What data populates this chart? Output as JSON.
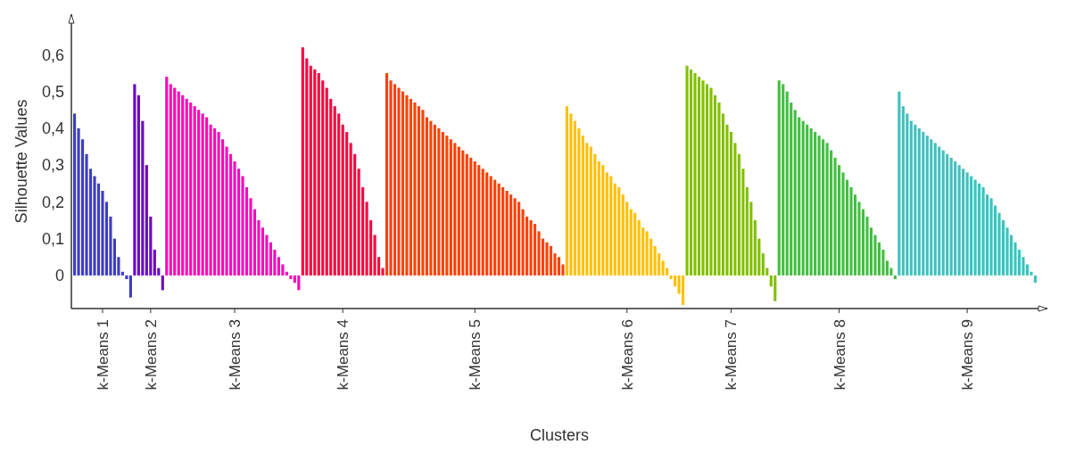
{
  "chart_data": {
    "type": "bar",
    "xlabel": "Clusters",
    "ylabel": "Silhouette Values",
    "categories": [
      null,
      null,
      null,
      null,
      null,
      null,
      null,
      "k-Means 1",
      null,
      null,
      null,
      null,
      null,
      null,
      null,
      null,
      null,
      null,
      null,
      "k-Means 2",
      null,
      null,
      null,
      null,
      null,
      null,
      null,
      null,
      null,
      null,
      null,
      null,
      null,
      null,
      null,
      null,
      null,
      null,
      null,
      null,
      "k-Means 3",
      null,
      null,
      null,
      null,
      null,
      null,
      null,
      null,
      null,
      null,
      null,
      null,
      null,
      null,
      null,
      null,
      null,
      null,
      null,
      null,
      null,
      null,
      null,
      null,
      null,
      null,
      "k-Means 4",
      null,
      null,
      null,
      null,
      null,
      null,
      null,
      null,
      null,
      null,
      null,
      null,
      null,
      null,
      null,
      null,
      null,
      null,
      null,
      null,
      null,
      null,
      null,
      null,
      null,
      null,
      null,
      null,
      null,
      null,
      null,
      null,
      "k-Means 5",
      null,
      null,
      null,
      null,
      null,
      null,
      null,
      null,
      null,
      null,
      null,
      null,
      null,
      null,
      null,
      null,
      null,
      null,
      null,
      null,
      null,
      null,
      null,
      null,
      null,
      null,
      null,
      null,
      null,
      null,
      null,
      null,
      null,
      null,
      null,
      null,
      null,
      "k-Means 6",
      null,
      null,
      null,
      null,
      null,
      null,
      null,
      null,
      null,
      null,
      null,
      null,
      null,
      null,
      null,
      null,
      null,
      null,
      null,
      null,
      null,
      null,
      null,
      null,
      null,
      "k-Means 7",
      null,
      null,
      null,
      null,
      null,
      null,
      null,
      null,
      null,
      null,
      null,
      null,
      null,
      null,
      null,
      null,
      null,
      null,
      null,
      null,
      null,
      null,
      null,
      null,
      null,
      null,
      "k-Means 8",
      null,
      null,
      null,
      null,
      null,
      null,
      null,
      null,
      null,
      null,
      null,
      null,
      null,
      null,
      null,
      null,
      null,
      null,
      null,
      null,
      null,
      null,
      null,
      null,
      null,
      null,
      null,
      null,
      null,
      null,
      null,
      "k-Means 9",
      null,
      null,
      null,
      null,
      null,
      null,
      null,
      null,
      null,
      null,
      null,
      null,
      null,
      null,
      null,
      null,
      null
    ],
    "values": [
      0.44,
      0.4,
      0.37,
      0.33,
      0.29,
      0.27,
      0.25,
      0.23,
      0.2,
      0.16,
      0.1,
      0.05,
      0.01,
      -0.01,
      -0.06,
      0.52,
      0.49,
      0.42,
      0.3,
      0.16,
      0.07,
      0.02,
      -0.04,
      0.54,
      0.52,
      0.51,
      0.5,
      0.49,
      0.48,
      0.47,
      0.46,
      0.45,
      0.44,
      0.43,
      0.41,
      0.4,
      0.39,
      0.37,
      0.35,
      0.33,
      0.31,
      0.29,
      0.27,
      0.24,
      0.21,
      0.18,
      0.15,
      0.13,
      0.11,
      0.09,
      0.07,
      0.05,
      0.03,
      0.01,
      -0.01,
      -0.02,
      -0.04,
      0.62,
      0.59,
      0.57,
      0.56,
      0.55,
      0.53,
      0.51,
      0.48,
      0.46,
      0.44,
      0.41,
      0.39,
      0.36,
      0.33,
      0.29,
      0.24,
      0.2,
      0.15,
      0.11,
      0.05,
      0.02,
      0.55,
      0.53,
      0.52,
      0.51,
      0.5,
      0.49,
      0.48,
      0.47,
      0.46,
      0.45,
      0.43,
      0.42,
      0.41,
      0.4,
      0.39,
      0.38,
      0.37,
      0.36,
      0.35,
      0.34,
      0.33,
      0.32,
      0.31,
      0.3,
      0.29,
      0.28,
      0.27,
      0.26,
      0.25,
      0.24,
      0.23,
      0.22,
      0.21,
      0.2,
      0.18,
      0.16,
      0.15,
      0.14,
      0.12,
      0.1,
      0.09,
      0.08,
      0.06,
      0.05,
      0.03,
      0.46,
      0.44,
      0.42,
      0.4,
      0.38,
      0.36,
      0.35,
      0.33,
      0.31,
      0.3,
      0.28,
      0.27,
      0.25,
      0.24,
      0.22,
      0.2,
      0.18,
      0.17,
      0.15,
      0.13,
      0.12,
      0.1,
      0.08,
      0.06,
      0.04,
      0.02,
      -0.01,
      -0.03,
      -0.05,
      -0.08,
      0.57,
      0.56,
      0.55,
      0.54,
      0.53,
      0.52,
      0.51,
      0.49,
      0.47,
      0.44,
      0.41,
      0.39,
      0.36,
      0.33,
      0.29,
      0.24,
      0.2,
      0.15,
      0.1,
      0.06,
      0.02,
      -0.03,
      -0.07,
      0.53,
      0.52,
      0.5,
      0.47,
      0.45,
      0.43,
      0.42,
      0.41,
      0.4,
      0.39,
      0.38,
      0.37,
      0.36,
      0.34,
      0.32,
      0.3,
      0.28,
      0.26,
      0.24,
      0.22,
      0.2,
      0.18,
      0.16,
      0.13,
      0.11,
      0.09,
      0.07,
      0.04,
      0.02,
      -0.01,
      0.5,
      0.46,
      0.44,
      0.42,
      0.41,
      0.4,
      0.39,
      0.38,
      0.37,
      0.36,
      0.35,
      0.34,
      0.33,
      0.32,
      0.31,
      0.3,
      0.29,
      0.28,
      0.27,
      0.26,
      0.25,
      0.24,
      0.22,
      0.21,
      0.19,
      0.17,
      0.15,
      0.13,
      0.11,
      0.09,
      0.07,
      0.05,
      0.03,
      0.01,
      -0.02
    ],
    "colors": [
      "#3c3cc8",
      "#3c3cc8",
      "#3c3cc8",
      "#3c3cc8",
      "#3c3cc8",
      "#3c3cc8",
      "#3c3cc8",
      "#3c3cc8",
      "#3c3cc8",
      "#3c3cc8",
      "#3c3cc8",
      "#3c3cc8",
      "#3c3cc8",
      "#3c3cc8",
      "#3c3cc8",
      "#7000c0",
      "#7000c0",
      "#7000c0",
      "#7000c0",
      "#7000c0",
      "#7000c0",
      "#7000c0",
      "#7000c0",
      "#ff00c0",
      "#ff00c0",
      "#ff00c0",
      "#ff00c0",
      "#ff00c0",
      "#ff00c0",
      "#ff00c0",
      "#ff00c0",
      "#ff00c0",
      "#ff00c0",
      "#ff00c0",
      "#ff00c0",
      "#ff00c0",
      "#ff00c0",
      "#ff00c0",
      "#ff00c0",
      "#ff00c0",
      "#ff00c0",
      "#ff00c0",
      "#ff00c0",
      "#ff00c0",
      "#ff00c0",
      "#ff00c0",
      "#ff00c0",
      "#ff00c0",
      "#ff00c0",
      "#ff00c0",
      "#ff00c0",
      "#ff00c0",
      "#ff00c0",
      "#ff00c0",
      "#ff00c0",
      "#ff00c0",
      "#ff00c0",
      "#ff0040",
      "#ff0040",
      "#ff0040",
      "#ff0040",
      "#ff0040",
      "#ff0040",
      "#ff0040",
      "#ff0040",
      "#ff0040",
      "#ff0040",
      "#ff0040",
      "#ff0040",
      "#ff0040",
      "#ff0040",
      "#ff0040",
      "#ff0040",
      "#ff0040",
      "#ff0040",
      "#ff0040",
      "#ff0040",
      "#ff0040",
      "#ff4000",
      "#ff4000",
      "#ff4000",
      "#ff4000",
      "#ff4000",
      "#ff4000",
      "#ff4000",
      "#ff4000",
      "#ff4000",
      "#ff4000",
      "#ff4000",
      "#ff4000",
      "#ff4000",
      "#ff4000",
      "#ff4000",
      "#ff4000",
      "#ff4000",
      "#ff4000",
      "#ff4000",
      "#ff4000",
      "#ff4000",
      "#ff4000",
      "#ff4000",
      "#ff4000",
      "#ff4000",
      "#ff4000",
      "#ff4000",
      "#ff4000",
      "#ff4000",
      "#ff4000",
      "#ff4000",
      "#ff4000",
      "#ff4000",
      "#ff4000",
      "#ff4000",
      "#ff4000",
      "#ff4000",
      "#ff4000",
      "#ff4000",
      "#ff4000",
      "#ff4000",
      "#ff4000",
      "#ff4000",
      "#ff4000",
      "#ff4000",
      "#ffc000",
      "#ffc000",
      "#ffc000",
      "#ffc000",
      "#ffc000",
      "#ffc000",
      "#ffc000",
      "#ffc000",
      "#ffc000",
      "#ffc000",
      "#ffc000",
      "#ffc000",
      "#ffc000",
      "#ffc000",
      "#ffc000",
      "#ffc000",
      "#ffc000",
      "#ffc000",
      "#ffc000",
      "#ffc000",
      "#ffc000",
      "#ffc000",
      "#ffc000",
      "#ffc000",
      "#ffc000",
      "#ffc000",
      "#ffc000",
      "#ffc000",
      "#ffc000",
      "#ffc000",
      "#80c000",
      "#80c000",
      "#80c000",
      "#80c000",
      "#80c000",
      "#80c000",
      "#80c000",
      "#80c000",
      "#80c000",
      "#80c000",
      "#80c000",
      "#80c000",
      "#80c000",
      "#80c000",
      "#80c000",
      "#80c000",
      "#80c000",
      "#80c000",
      "#80c000",
      "#80c000",
      "#80c000",
      "#80c000",
      "#80c000",
      "#40c040",
      "#40c040",
      "#40c040",
      "#40c040",
      "#40c040",
      "#40c040",
      "#40c040",
      "#40c040",
      "#40c040",
      "#40c040",
      "#40c040",
      "#40c040",
      "#40c040",
      "#40c040",
      "#40c040",
      "#40c040",
      "#40c040",
      "#40c040",
      "#40c040",
      "#40c040",
      "#40c040",
      "#40c040",
      "#40c040",
      "#40c040",
      "#40c040",
      "#40c040",
      "#40c040",
      "#40c040",
      "#40c040",
      "#40c040",
      "#40c0c0",
      "#40c0c0",
      "#40c0c0",
      "#40c0c0",
      "#40c0c0",
      "#40c0c0",
      "#40c0c0",
      "#40c0c0",
      "#40c0c0",
      "#40c0c0",
      "#40c0c0",
      "#40c0c0",
      "#40c0c0",
      "#40c0c0",
      "#40c0c0",
      "#40c0c0",
      "#40c0c0",
      "#40c0c0",
      "#40c0c0",
      "#40c0c0",
      "#40c0c0",
      "#40c0c0",
      "#40c0c0",
      "#40c0c0",
      "#40c0c0",
      "#40c0c0",
      "#40c0c0",
      "#40c0c0",
      "#40c0c0",
      "#40c0c0",
      "#40c0c0",
      "#40c0c0",
      "#40c0c0",
      "#40c0c0",
      "#40c0c0"
    ],
    "ylim": [
      -0.09,
      0.71
    ],
    "yticks": [
      0,
      {
        "value": 0.1,
        "label": "0,1"
      },
      {
        "value": 0.2,
        "label": "0,2"
      },
      {
        "value": 0.3,
        "label": "0,3"
      },
      {
        "value": 0.4,
        "label": "0,4"
      },
      {
        "value": 0.5,
        "label": "0,5"
      },
      {
        "value": 0.6,
        "label": "0,6"
      }
    ],
    "grid": false
  }
}
